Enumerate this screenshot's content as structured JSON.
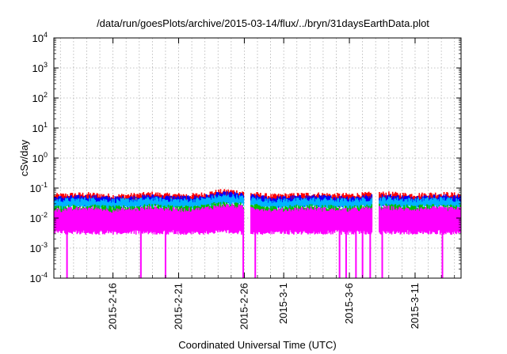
{
  "chart_data": {
    "type": "area",
    "title": "/data/run/goesPlots/archive/2015-03-14/flux/../bryn/31daysEarthData.plot",
    "xlabel": "Coordinated Universal Time (UTC)",
    "ylabel": "cSv/day",
    "y_scale": "log",
    "ylim": [
      0.0001,
      10000
    ],
    "xlim": [
      "2015-02-11T12:00",
      "2015-03-14T12:00"
    ],
    "grid": true,
    "y_ticks": [
      {
        "base": "10",
        "exp": "-4",
        "value": 0.0001
      },
      {
        "base": "10",
        "exp": "-3",
        "value": 0.001
      },
      {
        "base": "10",
        "exp": "-2",
        "value": 0.01
      },
      {
        "base": "10",
        "exp": "-1",
        "value": 0.1
      },
      {
        "base": "10",
        "exp": "0",
        "value": 1
      },
      {
        "base": "10",
        "exp": "1",
        "value": 10
      },
      {
        "base": "10",
        "exp": "2",
        "value": 100
      },
      {
        "base": "10",
        "exp": "3",
        "value": 1000
      },
      {
        "base": "10",
        "exp": "4",
        "value": 10000
      }
    ],
    "x_ticks": [
      {
        "label": "2015-2-16",
        "date": "2015-02-16"
      },
      {
        "label": "2015-2-21",
        "date": "2015-02-21"
      },
      {
        "label": "2015-2-26",
        "date": "2015-02-26"
      },
      {
        "label": "2015-3-1",
        "date": "2015-03-01"
      },
      {
        "label": "2015-3-6",
        "date": "2015-03-06"
      },
      {
        "label": "2015-3-11",
        "date": "2015-03-11"
      }
    ],
    "gaps": [
      {
        "start": "2015-02-26T00:00",
        "end": "2015-02-26T12:00"
      },
      {
        "start": "2015-03-07T18:00",
        "end": "2015-03-08T06:00"
      }
    ],
    "dropouts": [
      {
        "date": "2015-02-12T12:00",
        "value": 0.0001
      },
      {
        "date": "2015-02-18T03:00",
        "value": 0.0001
      },
      {
        "date": "2015-02-20T00:00",
        "value": 0.0001
      },
      {
        "date": "2015-02-25T22:00",
        "value": 0.0001
      },
      {
        "date": "2015-02-26T20:00",
        "value": 0.0001
      },
      {
        "date": "2015-03-05T06:00",
        "value": 0.0001
      },
      {
        "date": "2015-03-05T18:00",
        "value": 0.0001
      },
      {
        "date": "2015-03-06T12:00",
        "value": 0.0001
      },
      {
        "date": "2015-03-07T00:00",
        "value": 0.0001
      },
      {
        "date": "2015-03-07T14:00",
        "value": 0.0001
      },
      {
        "date": "2015-03-08T12:00",
        "value": 0.0001
      },
      {
        "date": "2015-03-13T02:00",
        "value": 0.0001
      }
    ],
    "series": [
      {
        "color": "#ff0000",
        "values": [
          0.058,
          0.062,
          0.063,
          0.06,
          0.055,
          0.058,
          0.061,
          0.066,
          0.06,
          0.059,
          0.058,
          0.064,
          0.078,
          0.081,
          0.07,
          0.063,
          0.055,
          0.058,
          0.06,
          0.063,
          0.062,
          0.059,
          0.059,
          0.062,
          0.067,
          0.066,
          0.062,
          0.06,
          0.063,
          0.065,
          0.062
        ]
      },
      {
        "color": "#0000ff",
        "values": [
          0.048,
          0.05,
          0.052,
          0.05,
          0.046,
          0.048,
          0.05,
          0.054,
          0.05,
          0.049,
          0.048,
          0.053,
          0.064,
          0.067,
          0.058,
          0.052,
          0.046,
          0.048,
          0.05,
          0.052,
          0.051,
          0.049,
          0.049,
          0.051,
          0.055,
          0.054,
          0.051,
          0.05,
          0.052,
          0.054,
          0.051
        ]
      },
      {
        "color": "#00b4ff",
        "values": [
          0.04,
          0.041,
          0.043,
          0.041,
          0.038,
          0.04,
          0.041,
          0.045,
          0.041,
          0.04,
          0.04,
          0.044,
          0.053,
          0.055,
          0.048,
          0.043,
          0.038,
          0.04,
          0.041,
          0.043,
          0.042,
          0.04,
          0.04,
          0.042,
          0.045,
          0.045,
          0.042,
          0.041,
          0.043,
          0.044,
          0.042
        ]
      },
      {
        "color": "#00c000",
        "values": [
          0.023,
          0.024,
          0.025,
          0.024,
          0.022,
          0.023,
          0.024,
          0.026,
          0.024,
          0.023,
          0.023,
          0.025,
          0.03,
          0.031,
          0.027,
          0.025,
          0.022,
          0.023,
          0.024,
          0.025,
          0.024,
          0.023,
          0.023,
          0.024,
          0.026,
          0.026,
          0.024,
          0.024,
          0.025,
          0.025,
          0.024
        ]
      },
      {
        "color": "#ff00ff",
        "values": [
          0.019,
          0.02,
          0.021,
          0.02,
          0.018,
          0.019,
          0.02,
          0.022,
          0.02,
          0.019,
          0.019,
          0.021,
          0.025,
          0.026,
          0.023,
          0.021,
          0.018,
          0.019,
          0.02,
          0.021,
          0.02,
          0.019,
          0.019,
          0.02,
          0.022,
          0.022,
          0.02,
          0.02,
          0.021,
          0.021,
          0.02
        ]
      }
    ],
    "series_dates_start": "2015-02-12",
    "series_floor": 0.004,
    "floor_color": "#ff00ff"
  }
}
